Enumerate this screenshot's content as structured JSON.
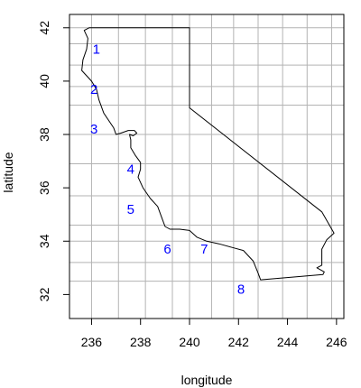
{
  "chart_data": {
    "type": "scatter",
    "title": "",
    "xlabel": "longitude",
    "ylabel": "latitude",
    "xlim": [
      235.1,
      246.3
    ],
    "ylim": [
      31.1,
      42.5
    ],
    "x_ticks": [
      236,
      238,
      240,
      242,
      244,
      246
    ],
    "y_ticks": [
      32,
      34,
      36,
      38,
      40,
      42
    ],
    "x_tick_labels": [
      "236",
      "238",
      "240",
      "242",
      "244",
      "246"
    ],
    "y_tick_labels": [
      "32",
      "34",
      "36",
      "38",
      "40",
      "42"
    ],
    "grid": true,
    "grid_x": [
      236,
      237.1,
      238.2,
      239.3,
      240,
      240.9,
      241.8,
      242.8,
      243.8,
      244.8,
      245.8
    ],
    "grid_y": [
      32.5,
      33.2,
      34,
      34.6,
      35.7,
      36.9,
      38,
      39.1,
      39.8,
      40.6,
      41.4,
      42
    ],
    "points": [
      {
        "label": "1",
        "x": 236.2,
        "y": 41.2
      },
      {
        "label": "2",
        "x": 236.1,
        "y": 39.7
      },
      {
        "label": "3",
        "x": 236.1,
        "y": 38.2
      },
      {
        "label": "4",
        "x": 237.6,
        "y": 36.7
      },
      {
        "label": "5",
        "x": 237.6,
        "y": 35.2
      },
      {
        "label": "6",
        "x": 239.1,
        "y": 33.7
      },
      {
        "label": "7",
        "x": 240.6,
        "y": 33.7
      },
      {
        "label": "8",
        "x": 242.1,
        "y": 32.2
      }
    ],
    "outline": [
      [
        235.9,
        42.0
      ],
      [
        240.0,
        42.0
      ],
      [
        240.0,
        39.0
      ],
      [
        245.4,
        35.1
      ],
      [
        245.9,
        34.3
      ],
      [
        245.6,
        34.05
      ],
      [
        245.4,
        33.7
      ],
      [
        245.4,
        33.1
      ],
      [
        245.2,
        33.0
      ],
      [
        245.5,
        32.85
      ],
      [
        245.45,
        32.75
      ],
      [
        242.9,
        32.55
      ],
      [
        242.8,
        32.8
      ],
      [
        242.6,
        33.25
      ],
      [
        242.2,
        33.65
      ],
      [
        241.8,
        33.75
      ],
      [
        241.2,
        33.9
      ],
      [
        240.7,
        34.0
      ],
      [
        240.3,
        34.15
      ],
      [
        240.0,
        34.4
      ],
      [
        239.6,
        34.45
      ],
      [
        239.2,
        34.45
      ],
      [
        239.0,
        34.55
      ],
      [
        238.9,
        34.8
      ],
      [
        238.7,
        35.3
      ],
      [
        238.4,
        35.6
      ],
      [
        238.1,
        36.0
      ],
      [
        237.9,
        36.4
      ],
      [
        238.0,
        36.7
      ],
      [
        238.0,
        36.95
      ],
      [
        237.8,
        37.2
      ],
      [
        237.6,
        37.5
      ],
      [
        237.6,
        37.8
      ],
      [
        237.55,
        38.0
      ],
      [
        237.7,
        37.95
      ],
      [
        237.85,
        38.05
      ],
      [
        237.75,
        38.15
      ],
      [
        237.5,
        38.15
      ],
      [
        237.2,
        38.05
      ],
      [
        237.0,
        38.0
      ],
      [
        236.9,
        38.25
      ],
      [
        236.5,
        38.8
      ],
      [
        236.3,
        39.3
      ],
      [
        236.2,
        39.7
      ],
      [
        236.0,
        40.0
      ],
      [
        235.6,
        40.4
      ],
      [
        235.65,
        40.8
      ],
      [
        235.8,
        41.2
      ],
      [
        235.85,
        41.6
      ],
      [
        235.7,
        41.9
      ],
      [
        235.9,
        42.0
      ]
    ],
    "colors": {
      "grid": "#b3b3b3",
      "outline": "#000000",
      "labels": "#0000ff",
      "frame": "#000000"
    }
  }
}
